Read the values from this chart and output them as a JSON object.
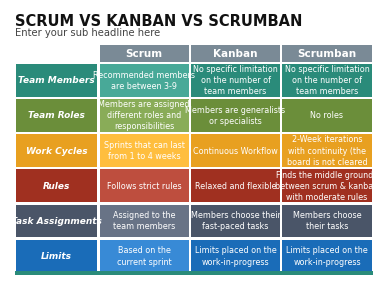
{
  "title": "SCRUM VS KANBAN VS SCRUMBAN",
  "subtitle": "Enter your sub headline here",
  "col_headers": [
    "Scrum",
    "Kanban",
    "Scrumban"
  ],
  "col_header_color": "#7a8a96",
  "row_labels": [
    "Team Members",
    "Team Roles",
    "Work Cycles",
    "Rules",
    "Task Assignments",
    "Limits"
  ],
  "row_colors": [
    "#2a8b7a",
    "#6b8e3a",
    "#e8a020",
    "#a03020",
    "#4a5568",
    "#1a6cb8"
  ],
  "row_label_text_color": "#ffffff",
  "col_header_text_color": "#ffffff",
  "cell_text_color": "#ffffff",
  "scrum_cell_text_color": "#ffffff",
  "background_color": "#ffffff",
  "bottom_bar_color": "#2a8b7a",
  "data": [
    [
      "Recommended members\nare between 3-9",
      "No specific limitation\non the number of\nteam members",
      "No specific limitation\non the number of\nteam members"
    ],
    [
      "Members are assigned\ndifferent roles and\nresponsibilities",
      "Members are generalists\nor specialists",
      "No roles"
    ],
    [
      "Sprints that can last\nfrom 1 to 4 weeks",
      "Continuous Workflow",
      "2-Week iterations\nwith continuity (the\nboard is not cleared"
    ],
    [
      "Follows strict rules",
      "Relaxed and flexible",
      "Finds the middle grounds\nbetween scrum & kanban\nwith moderate rules"
    ],
    [
      "Assigned to the\nteam members",
      "Members choose their\nfast-paced tasks",
      "Members choose\ntheir tasks"
    ],
    [
      "Based on the\ncurrent sprint",
      "Limits placed on the\nwork-in-progress",
      "Limits placed on the\nwork-in-progress"
    ]
  ]
}
